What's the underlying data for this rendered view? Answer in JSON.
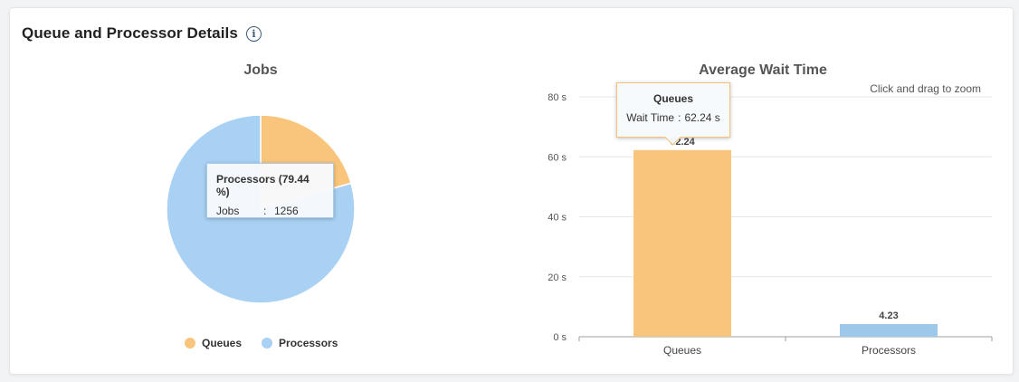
{
  "panel": {
    "title": "Queue and Processor Details",
    "info_icon": "info-circle-icon"
  },
  "colors": {
    "queues": "#f9c47b",
    "processors": "#a9d1f3"
  },
  "jobs_chart": {
    "title": "Jobs",
    "tooltip": {
      "header": "Processors (79.44 %)",
      "label": "Jobs",
      "separator": ":",
      "value": "1256"
    },
    "legend": [
      "Queues",
      "Processors"
    ]
  },
  "wait_chart": {
    "title": "Average Wait Time",
    "zoom_hint": "Click and drag to zoom",
    "tooltip": {
      "header": "Queues",
      "label": "Wait Time",
      "separator": ":",
      "value": "62.24 s"
    }
  },
  "chart_data": [
    {
      "type": "pie",
      "title": "Jobs",
      "categories": [
        "Queues",
        "Processors"
      ],
      "percent": [
        20.56,
        79.44
      ],
      "highlighted": {
        "category": "Processors",
        "jobs": 1256,
        "percent": 79.44
      },
      "legend_position": "bottom"
    },
    {
      "type": "bar",
      "title": "Average Wait Time",
      "categories": [
        "Queues",
        "Processors"
      ],
      "values": [
        62.24,
        4.23
      ],
      "data_labels": [
        "62.24",
        "4.23"
      ],
      "y_ticks": [
        "0 s",
        "20 s",
        "40 s",
        "60 s",
        "80 s"
      ],
      "ylim": [
        0,
        80
      ],
      "grid": true
    }
  ]
}
